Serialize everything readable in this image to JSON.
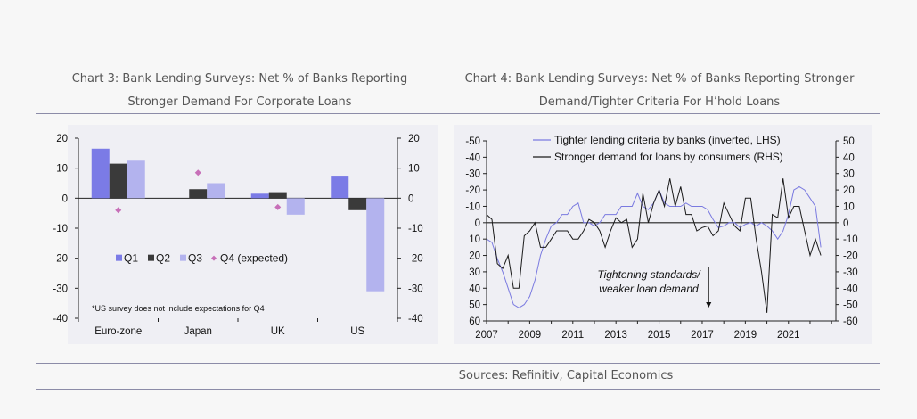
{
  "chart3": {
    "title_line1": "Chart 3: Bank Lending Surveys: Net % of Banks Reporting",
    "title_line2": "Stronger Demand For Corporate Loans",
    "note": "*US survey does not include expectations for Q4"
  },
  "chart4": {
    "title_line1": "Chart 4: Bank Lending Surveys: Net % of Banks Reporting Stronger",
    "title_line2": "Demand/Tighter Criteria For H’hold Loans",
    "annotation_line1": "Tightening standards/",
    "annotation_line2": "weaker loan demand"
  },
  "sources": "Sources: Refinitiv, Capital Economics",
  "colors": {
    "q1": "#7b7be6",
    "q2": "#3a3a3a",
    "q3": "#b3b3ee",
    "q4": "#c76fb8",
    "lhs_line": "#7a7ae0",
    "rhs_line": "#1a1a1a"
  },
  "chart_data": [
    {
      "type": "bar",
      "categories": [
        "Euro-zone",
        "Japan",
        "UK",
        "US"
      ],
      "series": [
        {
          "name": "Q1",
          "values": [
            16.5,
            0,
            1.5,
            7.5
          ]
        },
        {
          "name": "Q2",
          "values": [
            11.5,
            3,
            2,
            -4
          ]
        },
        {
          "name": "Q3",
          "values": [
            12.5,
            5,
            -5.5,
            -31
          ]
        },
        {
          "name": "Q4 (expected)",
          "values": [
            -4,
            8.5,
            -3,
            null
          ]
        }
      ],
      "ylim": [
        -40,
        20
      ],
      "yticks_left": [
        "20",
        "10",
        "0",
        "-10",
        "-20",
        "-30",
        "-40"
      ],
      "yticks_right": [
        "20",
        "10",
        "0",
        "-10",
        "-20",
        "-30",
        "-40"
      ],
      "legend_position": "lower-left"
    },
    {
      "type": "line",
      "x_ticks": [
        "2007",
        "2009",
        "2011",
        "2013",
        "2015",
        "2017",
        "2019",
        "2021"
      ],
      "xlim": [
        2007,
        2023.2
      ],
      "y_left_ticks": [
        "-50",
        "-40",
        "-30",
        "-20",
        "-10",
        "0",
        "10",
        "20",
        "30",
        "40",
        "50",
        "60"
      ],
      "y_left_range": [
        -50,
        60
      ],
      "y_right_ticks": [
        "50",
        "40",
        "30",
        "20",
        "10",
        "0",
        "-10",
        "-20",
        "-30",
        "-40",
        "-50",
        "-60"
      ],
      "y_right_range": [
        50,
        -60
      ],
      "series": [
        {
          "name": "Tighter lending criteria by banks (inverted, LHS)",
          "axis": "left",
          "x": [
            2007.0,
            2007.25,
            2007.5,
            2007.75,
            2008.0,
            2008.25,
            2008.5,
            2008.75,
            2009.0,
            2009.25,
            2009.5,
            2009.75,
            2010.0,
            2010.25,
            2010.5,
            2010.75,
            2011.0,
            2011.25,
            2011.5,
            2011.75,
            2012.0,
            2012.25,
            2012.5,
            2012.75,
            2013.0,
            2013.25,
            2013.5,
            2013.75,
            2014.0,
            2014.25,
            2014.5,
            2014.75,
            2015.0,
            2015.25,
            2015.5,
            2015.75,
            2016.0,
            2016.25,
            2016.5,
            2016.75,
            2017.0,
            2017.25,
            2017.5,
            2017.75,
            2018.0,
            2018.25,
            2018.5,
            2018.75,
            2019.0,
            2019.25,
            2019.5,
            2019.75,
            2020.0,
            2020.25,
            2020.5,
            2020.75,
            2021.0,
            2021.25,
            2021.5,
            2021.75,
            2022.0,
            2022.25,
            2022.5
          ],
          "y": [
            10,
            12,
            22,
            30,
            40,
            50,
            52,
            50,
            45,
            35,
            20,
            10,
            2,
            0,
            -5,
            -5,
            -10,
            -12,
            0,
            0,
            2,
            0,
            -5,
            -5,
            -5,
            -10,
            -10,
            -10,
            -18,
            -10,
            -8,
            -12,
            -20,
            -12,
            -10,
            -10,
            -10,
            -12,
            -10,
            -10,
            -10,
            -8,
            -2,
            3,
            2,
            0,
            0,
            3,
            1,
            0,
            2,
            0,
            2,
            5,
            10,
            5,
            -5,
            -20,
            -22,
            -20,
            -15,
            -10,
            15
          ]
        },
        {
          "name": "Stronger demand for loans by consumers (RHS)",
          "axis": "right",
          "x": [
            2007.0,
            2007.25,
            2007.5,
            2007.75,
            2008.0,
            2008.25,
            2008.5,
            2008.75,
            2009.0,
            2009.25,
            2009.5,
            2009.75,
            2010.0,
            2010.25,
            2010.5,
            2010.75,
            2011.0,
            2011.25,
            2011.5,
            2011.75,
            2012.0,
            2012.25,
            2012.5,
            2012.75,
            2013.0,
            2013.25,
            2013.5,
            2013.75,
            2014.0,
            2014.25,
            2014.5,
            2014.75,
            2015.0,
            2015.25,
            2015.5,
            2015.75,
            2016.0,
            2016.25,
            2016.5,
            2016.75,
            2017.0,
            2017.25,
            2017.5,
            2017.75,
            2018.0,
            2018.25,
            2018.5,
            2018.75,
            2019.0,
            2019.25,
            2019.5,
            2019.75,
            2020.0,
            2020.25,
            2020.5,
            2020.75,
            2021.0,
            2021.25,
            2021.5,
            2021.75,
            2022.0,
            2022.25,
            2022.5
          ],
          "y": [
            5,
            2,
            -25,
            -28,
            -20,
            -40,
            -40,
            -8,
            -5,
            0,
            -15,
            -15,
            -10,
            -5,
            -5,
            -5,
            -10,
            -10,
            -5,
            2,
            0,
            -5,
            -15,
            -5,
            3,
            0,
            2,
            -15,
            -10,
            18,
            0,
            12,
            20,
            10,
            27,
            10,
            22,
            5,
            5,
            -5,
            -3,
            -2,
            -8,
            -5,
            12,
            5,
            -2,
            -5,
            15,
            15,
            -10,
            -30,
            -55,
            5,
            3,
            27,
            3,
            10,
            10,
            -5,
            -20,
            -10,
            -20
          ]
        }
      ],
      "legend_position": "top-left"
    }
  ]
}
